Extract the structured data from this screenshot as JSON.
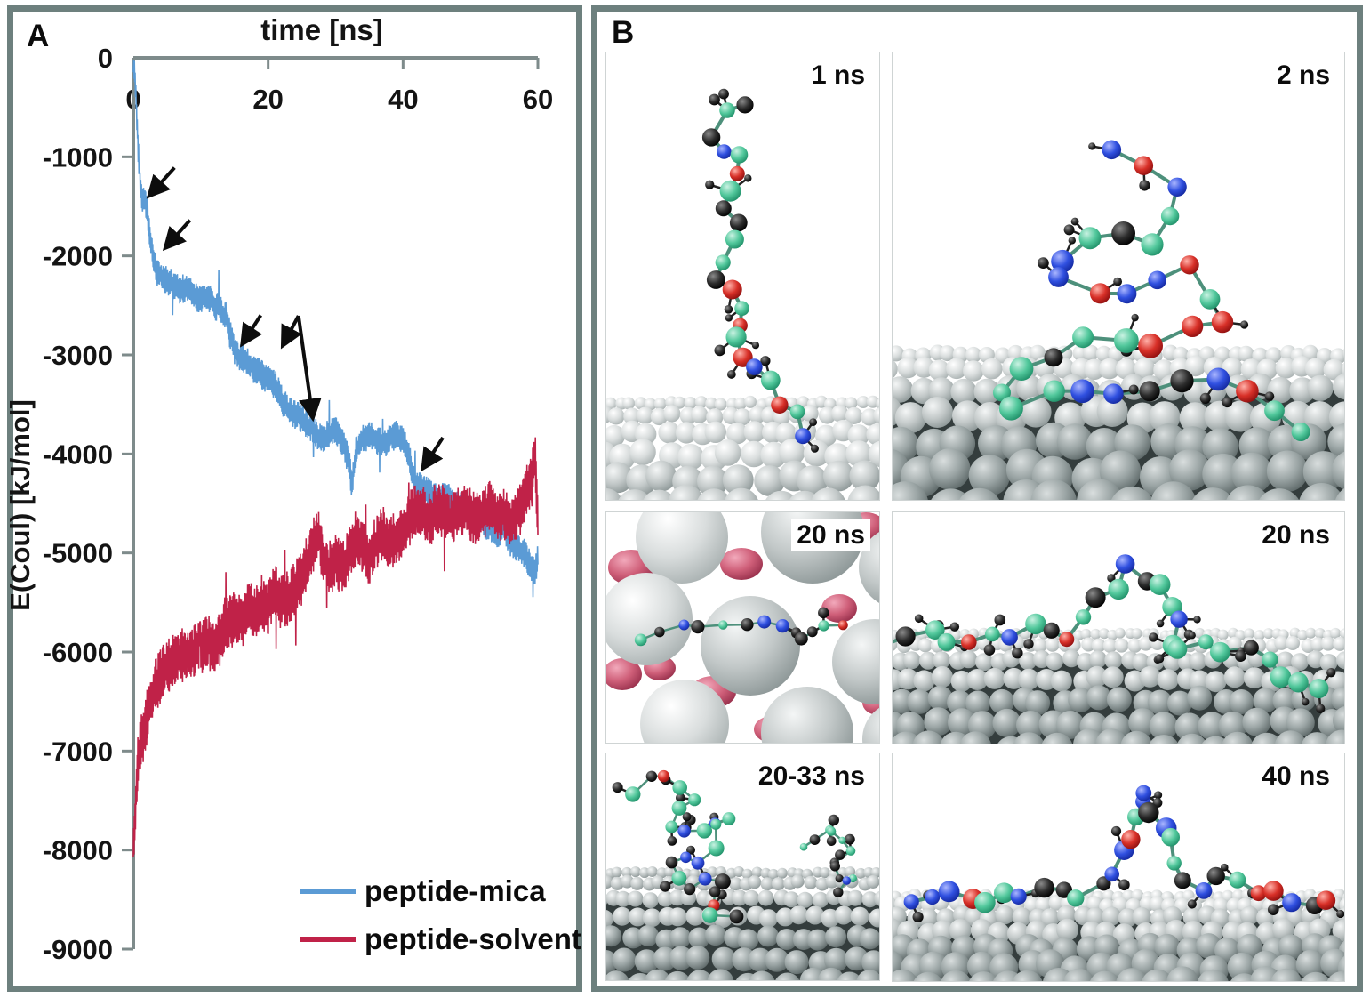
{
  "panel_a": {
    "label": "A"
  },
  "panel_b": {
    "label": "B",
    "images": [
      {
        "label": "1 ns"
      },
      {
        "label": "2 ns"
      },
      {
        "label": "20 ns"
      },
      {
        "label": "20 ns"
      },
      {
        "label": "20-33 ns"
      },
      {
        "label": "40 ns"
      }
    ]
  },
  "chart_data": {
    "type": "line",
    "xlabel": "time [ns]",
    "ylabel": "E(Coul) [kJ/mol]",
    "x_axis_position": "top",
    "grid": false,
    "xlim": [
      0,
      60
    ],
    "ylim": [
      -9000,
      0
    ],
    "xticks": [
      0,
      20,
      40,
      60
    ],
    "yticks": [
      0,
      -1000,
      -2000,
      -3000,
      -4000,
      -5000,
      -6000,
      -7000,
      -8000,
      -9000
    ],
    "legend_position": "inside-bottom-right",
    "series": [
      {
        "name": "peptide-mica",
        "color": "#5b9bd5",
        "noise": 150,
        "anchors": [
          [
            0,
            -80
          ],
          [
            0.2,
            -160
          ],
          [
            0.4,
            -420
          ],
          [
            0.6,
            -720
          ],
          [
            0.8,
            -1020
          ],
          [
            1.0,
            -1250
          ],
          [
            1.3,
            -1400
          ],
          [
            1.7,
            -1450
          ],
          [
            2.0,
            -1520
          ],
          [
            2.3,
            -1700
          ],
          [
            2.6,
            -1850
          ],
          [
            3.0,
            -2050
          ],
          [
            3.5,
            -2150
          ],
          [
            4,
            -2200
          ],
          [
            5,
            -2250
          ],
          [
            6,
            -2300
          ],
          [
            7,
            -2350
          ],
          [
            8,
            -2300
          ],
          [
            9,
            -2400
          ],
          [
            10,
            -2450
          ],
          [
            11,
            -2400
          ],
          [
            12,
            -2500
          ],
          [
            13,
            -2550
          ],
          [
            13.8,
            -2620
          ],
          [
            14.3,
            -2780
          ],
          [
            15,
            -2950
          ],
          [
            16,
            -3050
          ],
          [
            17,
            -3060
          ],
          [
            18,
            -3150
          ],
          [
            19,
            -3200
          ],
          [
            20,
            -3250
          ],
          [
            21,
            -3300
          ],
          [
            21.6,
            -3360
          ],
          [
            22.3,
            -3500
          ],
          [
            23,
            -3550
          ],
          [
            24,
            -3600
          ],
          [
            25,
            -3650
          ],
          [
            26,
            -3700
          ],
          [
            27,
            -3780
          ],
          [
            28,
            -3850
          ],
          [
            29,
            -3800
          ],
          [
            30,
            -3750
          ],
          [
            31,
            -3880
          ],
          [
            32,
            -4080
          ],
          [
            32.4,
            -4320
          ],
          [
            33,
            -3980
          ],
          [
            34,
            -3850
          ],
          [
            35,
            -3800
          ],
          [
            36,
            -3850
          ],
          [
            37,
            -3900
          ],
          [
            38,
            -3850
          ],
          [
            39,
            -3800
          ],
          [
            40,
            -3850
          ],
          [
            40.7,
            -3980
          ],
          [
            41.3,
            -4150
          ],
          [
            42,
            -4300
          ],
          [
            43,
            -4350
          ],
          [
            44,
            -4400
          ],
          [
            45,
            -4450
          ],
          [
            46,
            -4400
          ],
          [
            47,
            -4450
          ],
          [
            48,
            -4500
          ],
          [
            49,
            -4550
          ],
          [
            50,
            -4600
          ],
          [
            51,
            -4600
          ],
          [
            52,
            -4700
          ],
          [
            53,
            -4750
          ],
          [
            54,
            -4800
          ],
          [
            55,
            -4750
          ],
          [
            56,
            -4900
          ],
          [
            57,
            -4950
          ],
          [
            58,
            -5000
          ],
          [
            59,
            -5150
          ],
          [
            59.5,
            -5200
          ],
          [
            60,
            -5050
          ]
        ]
      },
      {
        "name": "peptide-solvent",
        "color": "#c02248",
        "noise": 280,
        "anchors": [
          [
            0,
            -7950
          ],
          [
            0.15,
            -7850
          ],
          [
            0.3,
            -7600
          ],
          [
            0.5,
            -7300
          ],
          [
            0.7,
            -7100
          ],
          [
            1.0,
            -6950
          ],
          [
            1.4,
            -6850
          ],
          [
            1.8,
            -6750
          ],
          [
            2.2,
            -6600
          ],
          [
            2.6,
            -6500
          ],
          [
            3,
            -6400
          ],
          [
            3.5,
            -6300
          ],
          [
            4,
            -6250
          ],
          [
            5,
            -6150
          ],
          [
            6,
            -6100
          ],
          [
            7,
            -6050
          ],
          [
            8,
            -6000
          ],
          [
            9,
            -6000
          ],
          [
            10,
            -5950
          ],
          [
            11,
            -5900
          ],
          [
            12,
            -5950
          ],
          [
            13,
            -5850
          ],
          [
            14,
            -5700
          ],
          [
            15,
            -5650
          ],
          [
            16,
            -5700
          ],
          [
            17,
            -5550
          ],
          [
            18,
            -5600
          ],
          [
            19,
            -5500
          ],
          [
            20,
            -5550
          ],
          [
            21,
            -5400
          ],
          [
            22,
            -5500
          ],
          [
            23,
            -5450
          ],
          [
            24,
            -5350
          ],
          [
            25,
            -5250
          ],
          [
            26,
            -5050
          ],
          [
            27,
            -4850
          ],
          [
            27.5,
            -4800
          ],
          [
            28,
            -5000
          ],
          [
            29,
            -5150
          ],
          [
            30,
            -5100
          ],
          [
            31,
            -5150
          ],
          [
            32,
            -5000
          ],
          [
            33,
            -4850
          ],
          [
            34,
            -4950
          ],
          [
            35,
            -5050
          ],
          [
            36,
            -4900
          ],
          [
            37,
            -4800
          ],
          [
            38,
            -4900
          ],
          [
            39,
            -4850
          ],
          [
            40,
            -4800
          ],
          [
            41,
            -4650
          ],
          [
            42,
            -4550
          ],
          [
            43,
            -4600
          ],
          [
            44,
            -4650
          ],
          [
            45,
            -4600
          ],
          [
            46,
            -4550
          ],
          [
            47,
            -4650
          ],
          [
            48,
            -4600
          ],
          [
            49,
            -4550
          ],
          [
            50,
            -4600
          ],
          [
            51,
            -4650
          ],
          [
            52,
            -4600
          ],
          [
            53,
            -4500
          ],
          [
            54,
            -4650
          ],
          [
            55,
            -4600
          ],
          [
            56,
            -4700
          ],
          [
            57,
            -4600
          ],
          [
            58,
            -4450
          ],
          [
            59,
            -4250
          ],
          [
            59.6,
            -4000
          ],
          [
            60,
            -4700
          ]
        ]
      }
    ],
    "annotations": {
      "arrows": [
        {
          "from": [
            6.1,
            -1110
          ],
          "to": [
            2.4,
            -1390
          ]
        },
        {
          "from": [
            8.4,
            -1640
          ],
          "to": [
            4.8,
            -1915
          ]
        },
        {
          "from": [
            18.9,
            -2600
          ],
          "to": [
            16.2,
            -2885
          ]
        },
        {
          "from": [
            24.5,
            -2605
          ],
          "to": [
            22.2,
            -2900
          ]
        },
        {
          "from": [
            24.5,
            -2605
          ],
          "to": [
            26.6,
            -3630
          ]
        },
        {
          "from": [
            45.9,
            -3835
          ],
          "to": [
            43.0,
            -4140
          ]
        }
      ]
    }
  },
  "colors": {
    "frame": "#6d807e",
    "axis": "#7e8b8b",
    "text": "#141414",
    "arrow": "#0d0d0d",
    "sub_border": "#cfd4d4",
    "atom_teal": "#3fbf96",
    "atom_blue": "#2b3fd6",
    "atom_red": "#d42020",
    "atom_black": "#111111",
    "mica_gray": "#aeb6b6",
    "mica_pink": "#cf5f79"
  }
}
